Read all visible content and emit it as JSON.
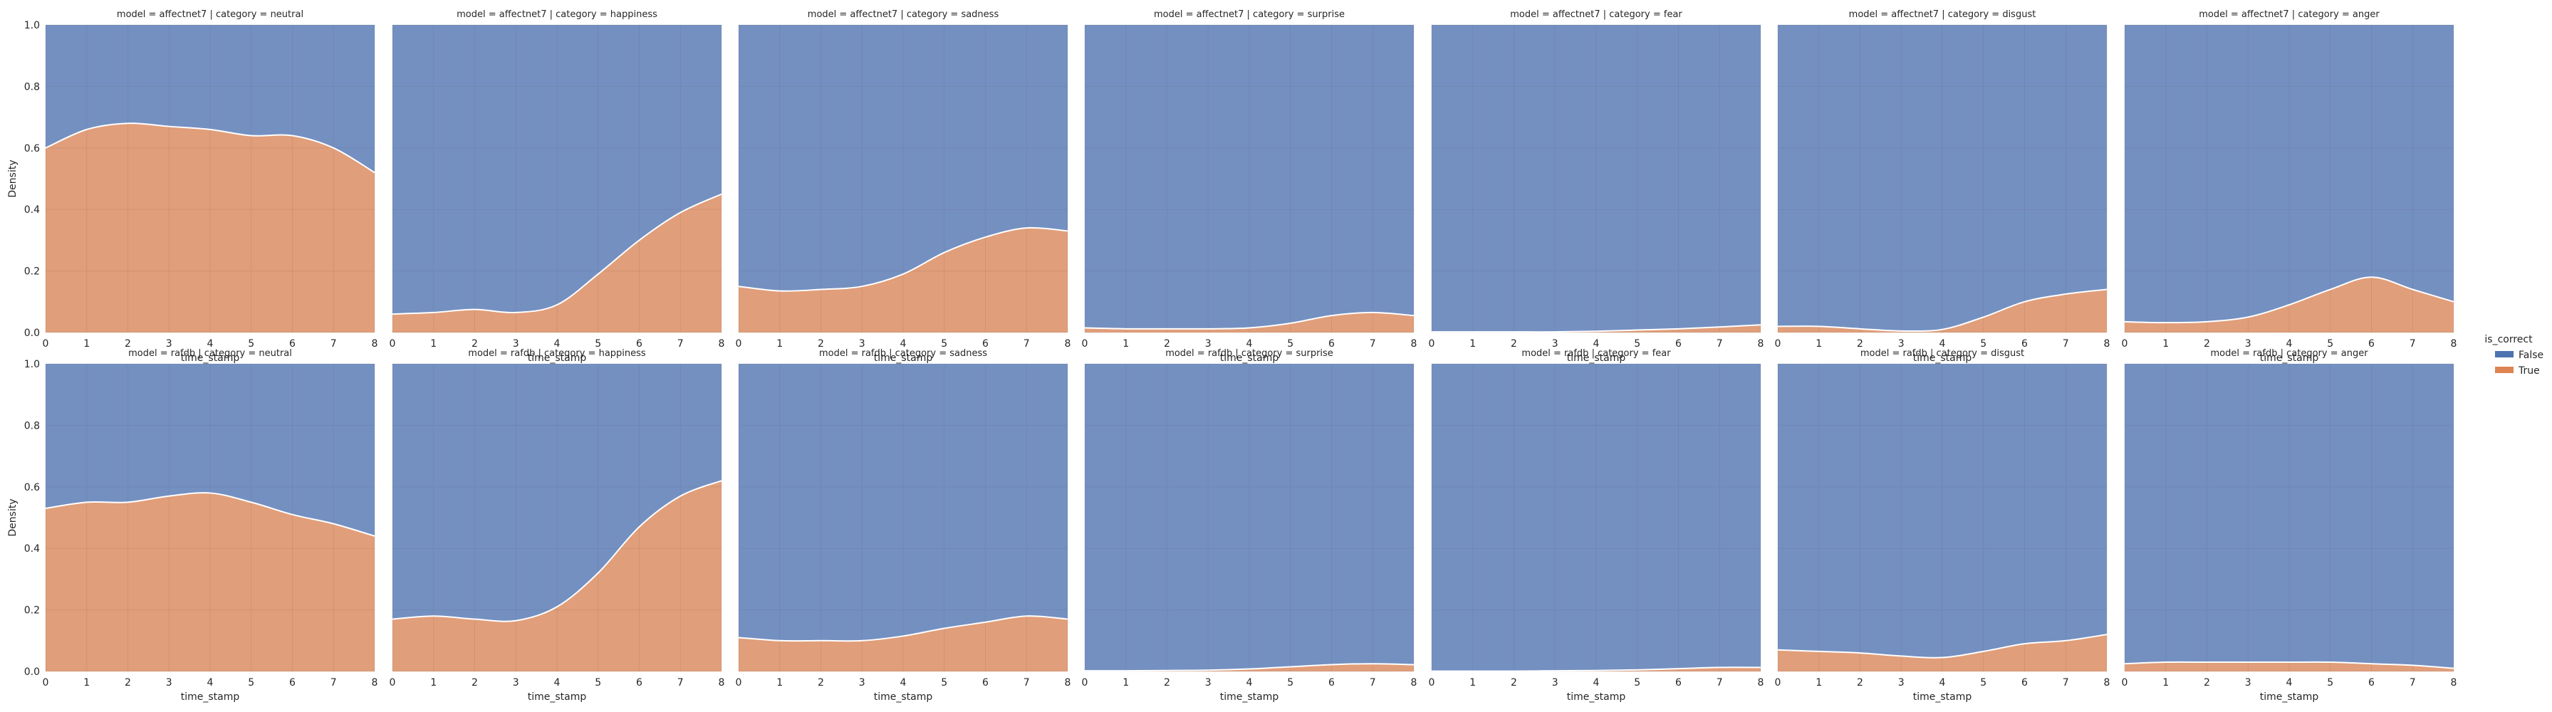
{
  "figure": {
    "ylabel": "Density",
    "xlabel": "time_stamp",
    "legend_title": "is_correct",
    "legend_items": [
      {
        "label": "False",
        "color": "#4c72b0"
      },
      {
        "label": "True",
        "color": "#dd8452"
      }
    ],
    "x_ticks": [
      "0",
      "1",
      "2",
      "3",
      "4",
      "5",
      "6",
      "7",
      "8"
    ],
    "y_ticks": [
      "0.0",
      "0.2",
      "0.4",
      "0.6",
      "0.8",
      "1.0"
    ]
  },
  "chart_data": {
    "type": "area",
    "stacking": "fill",
    "x_range": [
      0,
      8
    ],
    "y_range": [
      0,
      1
    ],
    "grid": true,
    "legend_position": "right",
    "x": [
      0,
      1,
      2,
      3,
      4,
      5,
      6,
      7,
      8
    ],
    "series_colors": {
      "False": "#4c72b0",
      "True": "#dd8452"
    },
    "panels": [
      {
        "title": "model = affectnet7 | category = neutral",
        "row": 0,
        "col": 0,
        "true_fraction": [
          0.6,
          0.66,
          0.68,
          0.67,
          0.66,
          0.64,
          0.64,
          0.6,
          0.52
        ]
      },
      {
        "title": "model = affectnet7 | category = happiness",
        "row": 0,
        "col": 1,
        "true_fraction": [
          0.06,
          0.065,
          0.075,
          0.065,
          0.09,
          0.19,
          0.3,
          0.39,
          0.45
        ]
      },
      {
        "title": "model = affectnet7 | category = sadness",
        "row": 0,
        "col": 2,
        "true_fraction": [
          0.15,
          0.135,
          0.14,
          0.15,
          0.19,
          0.26,
          0.31,
          0.34,
          0.33
        ]
      },
      {
        "title": "model = affectnet7 | category = surprise",
        "row": 0,
        "col": 3,
        "true_fraction": [
          0.015,
          0.012,
          0.012,
          0.012,
          0.015,
          0.03,
          0.055,
          0.065,
          0.055
        ]
      },
      {
        "title": "model = affectnet7 | category = fear",
        "row": 0,
        "col": 4,
        "true_fraction": [
          0.002,
          0.002,
          0.002,
          0.002,
          0.004,
          0.008,
          0.012,
          0.018,
          0.025
        ]
      },
      {
        "title": "model = affectnet7 | category = disgust",
        "row": 0,
        "col": 5,
        "true_fraction": [
          0.02,
          0.02,
          0.012,
          0.005,
          0.01,
          0.05,
          0.1,
          0.125,
          0.14
        ]
      },
      {
        "title": "model = affectnet7 | category = anger",
        "row": 0,
        "col": 6,
        "true_fraction": [
          0.035,
          0.032,
          0.035,
          0.05,
          0.09,
          0.14,
          0.18,
          0.14,
          0.1
        ]
      },
      {
        "title": "model = rafdb | category = neutral",
        "row": 1,
        "col": 0,
        "true_fraction": [
          0.53,
          0.55,
          0.55,
          0.57,
          0.58,
          0.55,
          0.51,
          0.48,
          0.44
        ]
      },
      {
        "title": "model = rafdb | category = happiness",
        "row": 1,
        "col": 1,
        "true_fraction": [
          0.17,
          0.18,
          0.17,
          0.165,
          0.21,
          0.32,
          0.47,
          0.57,
          0.62
        ]
      },
      {
        "title": "model = rafdb | category = sadness",
        "row": 1,
        "col": 2,
        "true_fraction": [
          0.11,
          0.1,
          0.1,
          0.1,
          0.115,
          0.14,
          0.16,
          0.18,
          0.17
        ]
      },
      {
        "title": "model = rafdb | category = surprise",
        "row": 1,
        "col": 3,
        "true_fraction": [
          0.002,
          0.002,
          0.003,
          0.004,
          0.008,
          0.015,
          0.022,
          0.025,
          0.022
        ]
      },
      {
        "title": "model = rafdb | category = fear",
        "row": 1,
        "col": 4,
        "true_fraction": [
          0.001,
          0.001,
          0.001,
          0.002,
          0.003,
          0.005,
          0.009,
          0.013,
          0.013
        ]
      },
      {
        "title": "model = rafdb | category = disgust",
        "row": 1,
        "col": 5,
        "true_fraction": [
          0.07,
          0.065,
          0.06,
          0.05,
          0.045,
          0.065,
          0.09,
          0.1,
          0.12
        ]
      },
      {
        "title": "model = rafdb | category = anger",
        "row": 1,
        "col": 6,
        "true_fraction": [
          0.025,
          0.03,
          0.03,
          0.03,
          0.03,
          0.03,
          0.025,
          0.02,
          0.01
        ]
      }
    ]
  }
}
